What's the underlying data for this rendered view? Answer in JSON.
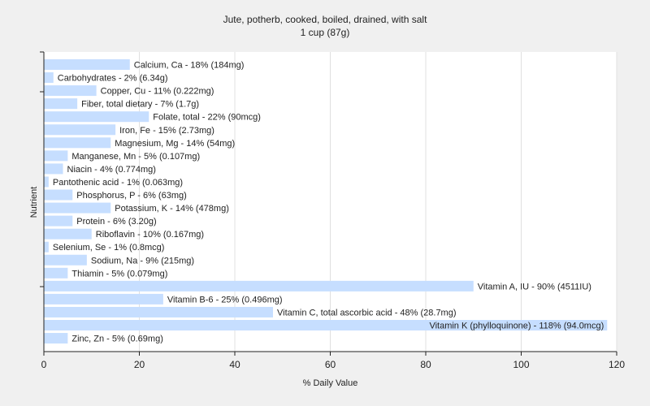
{
  "chart_data": {
    "type": "bar",
    "orientation": "horizontal",
    "title": "Jute, potherb, cooked, boiled, drained, with salt",
    "subtitle": "1 cup (87g)",
    "xlabel": "% Daily Value",
    "ylabel": "Nutrient",
    "xlim": [
      0,
      120
    ],
    "xticks": [
      0,
      20,
      40,
      60,
      80,
      100,
      120
    ],
    "grid": "vertical",
    "colors": {
      "bar": "#c6deff",
      "plot_bg": "#ffffff",
      "page_bg": "#f0f0f0",
      "grid": "#e0e0e0",
      "axis": "#222222"
    },
    "categories": [
      "Calcium, Ca",
      "Carbohydrates",
      "Copper, Cu",
      "Fiber, total dietary",
      "Folate, total",
      "Iron, Fe",
      "Magnesium, Mg",
      "Manganese, Mn",
      "Niacin",
      "Pantothenic acid",
      "Phosphorus, P",
      "Potassium, K",
      "Protein",
      "Riboflavin",
      "Selenium, Se",
      "Sodium, Na",
      "Thiamin",
      "Vitamin A, IU",
      "Vitamin B-6",
      "Vitamin C, total ascorbic acid",
      "Vitamin K (phylloquinone)",
      "Zinc, Zn"
    ],
    "values": [
      18,
      2,
      11,
      7,
      22,
      15,
      14,
      5,
      4,
      1,
      6,
      14,
      6,
      10,
      1,
      9,
      5,
      90,
      25,
      48,
      118,
      5
    ],
    "data_labels": [
      "Calcium, Ca - 18% (184mg)",
      "Carbohydrates - 2% (6.34g)",
      "Copper, Cu - 11% (0.222mg)",
      "Fiber, total dietary - 7% (1.7g)",
      "Folate, total - 22% (90mcg)",
      "Iron, Fe - 15% (2.73mg)",
      "Magnesium, Mg - 14% (54mg)",
      "Manganese, Mn - 5% (0.107mg)",
      "Niacin - 4% (0.774mg)",
      "Pantothenic acid - 1% (0.063mg)",
      "Phosphorus, P - 6% (63mg)",
      "Potassium, K - 14% (478mg)",
      "Protein - 6% (3.20g)",
      "Riboflavin - 10% (0.167mg)",
      "Selenium, Se - 1% (0.8mcg)",
      "Sodium, Na - 9% (215mg)",
      "Thiamin - 5% (0.079mg)",
      "Vitamin A, IU - 90% (4511IU)",
      "Vitamin B-6 - 25% (0.496mg)",
      "Vitamin C, total ascorbic acid - 48% (28.7mg)",
      "Vitamin K (phylloquinone) - 118% (94.0mcg)",
      "Zinc, Zn - 5% (0.69mg)"
    ]
  }
}
